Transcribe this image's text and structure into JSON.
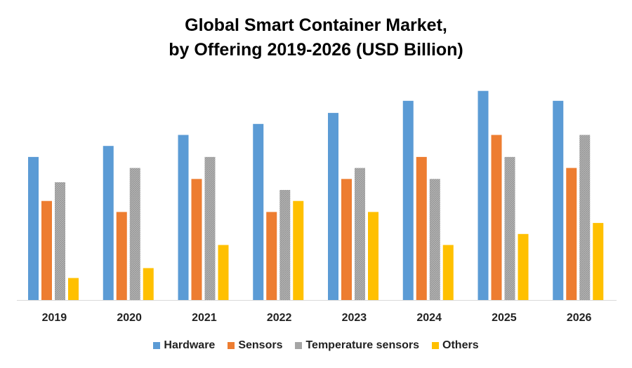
{
  "chart_data": {
    "type": "bar",
    "title_line1": "Global Smart Container Market,",
    "title_line2": "by Offering 2019-2026 (USD Billion)",
    "categories": [
      "2019",
      "2020",
      "2021",
      "2022",
      "2023",
      "2024",
      "2025",
      "2026"
    ],
    "series": [
      {
        "name": "Hardware",
        "color": "#5b9bd5",
        "values": [
          6.5,
          7.0,
          7.5,
          8.0,
          8.5,
          9.05,
          9.5,
          9.05
        ]
      },
      {
        "name": "Sensors",
        "color": "#ed7d31",
        "values": [
          4.5,
          4.0,
          5.5,
          4.0,
          5.5,
          6.5,
          7.5,
          6.0
        ]
      },
      {
        "name": "Temperature sensors",
        "color": "#a5a5a5",
        "values": [
          5.35,
          6.0,
          6.5,
          5.0,
          6.0,
          5.5,
          6.5,
          7.5
        ]
      },
      {
        "name": "Others",
        "color": "#ffc000",
        "values": [
          1.0,
          1.45,
          2.5,
          4.5,
          4.0,
          2.5,
          3.0,
          3.5
        ]
      }
    ],
    "ylim": [
      0,
      10
    ],
    "y_axis_shown": false,
    "grid": false,
    "legend_position": "bottom"
  }
}
